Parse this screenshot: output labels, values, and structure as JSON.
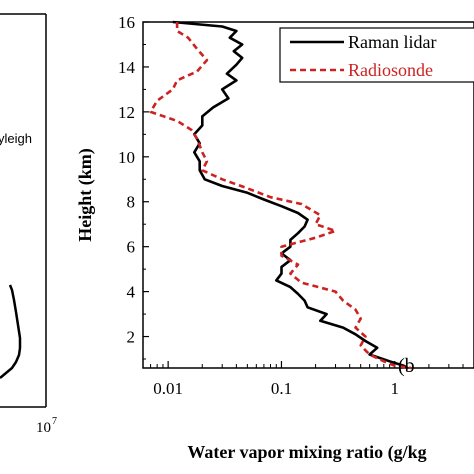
{
  "left_panel": {
    "label": "yleigh",
    "x_tick_label_base": "10",
    "x_tick_label_exp": "7"
  },
  "chart_data": {
    "type": "line",
    "xscale": "log",
    "xlim": [
      0.006,
      5
    ],
    "ylim": [
      0.6,
      16
    ],
    "xlabel": "Water vapor mixing ratio (g/kg",
    "ylabel": "Height (km)",
    "x_ticks": [
      0.01,
      0.1,
      1
    ],
    "x_tick_labels": [
      "0.01",
      "0.1",
      "1"
    ],
    "y_ticks": [
      2,
      4,
      6,
      8,
      10,
      12,
      14,
      16
    ],
    "y_tick_labels": [
      "2",
      "4",
      "6",
      "8",
      "10",
      "12",
      "14",
      "16"
    ],
    "panel_label": "(b",
    "legend_position": "top-right",
    "series": [
      {
        "name": "Raman lidar",
        "color": "#000000",
        "dash": "solid",
        "points": [
          [
            0.011,
            16.0
          ],
          [
            0.03,
            15.8
          ],
          [
            0.04,
            15.6
          ],
          [
            0.035,
            15.3
          ],
          [
            0.045,
            15.0
          ],
          [
            0.038,
            14.7
          ],
          [
            0.045,
            14.4
          ],
          [
            0.04,
            14.1
          ],
          [
            0.033,
            13.7
          ],
          [
            0.04,
            13.4
          ],
          [
            0.03,
            13.0
          ],
          [
            0.034,
            12.6
          ],
          [
            0.025,
            12.2
          ],
          [
            0.02,
            11.8
          ],
          [
            0.02,
            11.4
          ],
          [
            0.017,
            11.0
          ],
          [
            0.019,
            10.6
          ],
          [
            0.017,
            10.2
          ],
          [
            0.019,
            9.8
          ],
          [
            0.019,
            9.4
          ],
          [
            0.021,
            9.0
          ],
          [
            0.03,
            8.7
          ],
          [
            0.05,
            8.4
          ],
          [
            0.07,
            8.1
          ],
          [
            0.1,
            7.8
          ],
          [
            0.14,
            7.5
          ],
          [
            0.17,
            7.2
          ],
          [
            0.16,
            6.9
          ],
          [
            0.14,
            6.6
          ],
          [
            0.12,
            6.3
          ],
          [
            0.12,
            6.0
          ],
          [
            0.1,
            5.7
          ],
          [
            0.12,
            5.4
          ],
          [
            0.1,
            5.1
          ],
          [
            0.1,
            4.8
          ],
          [
            0.09,
            4.5
          ],
          [
            0.12,
            4.2
          ],
          [
            0.14,
            3.9
          ],
          [
            0.16,
            3.6
          ],
          [
            0.17,
            3.3
          ],
          [
            0.25,
            3.0
          ],
          [
            0.22,
            2.7
          ],
          [
            0.35,
            2.4
          ],
          [
            0.45,
            2.1
          ],
          [
            0.55,
            1.8
          ],
          [
            0.7,
            1.5
          ],
          [
            0.6,
            1.2
          ],
          [
            0.9,
            0.9
          ],
          [
            1.2,
            0.7
          ],
          [
            1.3,
            0.6
          ]
        ]
      },
      {
        "name": "Radiosonde",
        "color": "#cc2222",
        "dash": "dashed",
        "points": [
          [
            0.012,
            16.0
          ],
          [
            0.012,
            15.6
          ],
          [
            0.015,
            15.3
          ],
          [
            0.018,
            14.8
          ],
          [
            0.022,
            14.3
          ],
          [
            0.018,
            13.8
          ],
          [
            0.012,
            13.4
          ],
          [
            0.011,
            13.0
          ],
          [
            0.008,
            12.5
          ],
          [
            0.007,
            12.0
          ],
          [
            0.012,
            11.6
          ],
          [
            0.016,
            11.2
          ],
          [
            0.018,
            10.8
          ],
          [
            0.02,
            10.2
          ],
          [
            0.022,
            9.8
          ],
          [
            0.02,
            9.4
          ],
          [
            0.03,
            9.0
          ],
          [
            0.05,
            8.6
          ],
          [
            0.08,
            8.2
          ],
          [
            0.15,
            7.9
          ],
          [
            0.22,
            7.4
          ],
          [
            0.2,
            7.0
          ],
          [
            0.3,
            6.7
          ],
          [
            0.2,
            6.4
          ],
          [
            0.1,
            6.0
          ],
          [
            0.1,
            5.6
          ],
          [
            0.14,
            5.2
          ],
          [
            0.12,
            4.8
          ],
          [
            0.15,
            4.4
          ],
          [
            0.3,
            4.0
          ],
          [
            0.35,
            3.6
          ],
          [
            0.45,
            3.2
          ],
          [
            0.5,
            2.8
          ],
          [
            0.45,
            2.4
          ],
          [
            0.55,
            2.0
          ],
          [
            0.5,
            1.6
          ],
          [
            0.6,
            1.2
          ],
          [
            0.8,
            0.9
          ],
          [
            1.0,
            0.7
          ],
          [
            1.4,
            0.6
          ]
        ]
      }
    ]
  }
}
